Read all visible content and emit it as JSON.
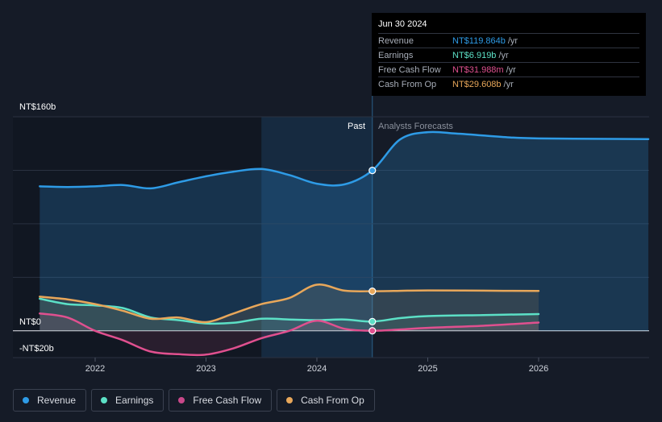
{
  "tooltip": {
    "date": "Jun 30 2024",
    "rows": [
      {
        "label": "Revenue",
        "value": "NT$119.864b",
        "unit": "/yr",
        "color": "#2e9be6"
      },
      {
        "label": "Earnings",
        "value": "NT$6.919b",
        "unit": "/yr",
        "color": "#5ce0c6"
      },
      {
        "label": "Free Cash Flow",
        "value": "NT$31.988m",
        "unit": "/yr",
        "color": "#e0508f"
      },
      {
        "label": "Cash From Op",
        "value": "NT$29.608b",
        "unit": "/yr",
        "color": "#e8a75a"
      }
    ]
  },
  "legend": [
    {
      "label": "Revenue",
      "color": "#2e9be6"
    },
    {
      "label": "Earnings",
      "color": "#5ce0c6"
    },
    {
      "label": "Free Cash Flow",
      "color": "#c9488a"
    },
    {
      "label": "Cash From Op",
      "color": "#e8a75a"
    }
  ],
  "chart_data": {
    "type": "line",
    "title": "",
    "xlabel": "",
    "ylabel": "",
    "y_top_label": "NT$160b",
    "y_zero_label": "NT$0",
    "y_bottom_label": "-NT$20b",
    "past_label": "Past",
    "forecast_label": "Analysts Forecasts",
    "ylim": [
      -20,
      160
    ],
    "xlim": [
      2021.45,
      2026.99
    ],
    "x_ticks": [
      2022,
      2023,
      2024,
      2025,
      2026
    ],
    "x_tick_labels": [
      "2022",
      "2023",
      "2024",
      "2025",
      "2026"
    ],
    "divider_x": 2024.5,
    "shade_start_x": 2023.5,
    "grid": true,
    "series": [
      {
        "name": "Revenue",
        "color": "#2e9be6",
        "points": [
          [
            2021.5,
            108
          ],
          [
            2021.75,
            107.5
          ],
          [
            2022.0,
            108
          ],
          [
            2022.25,
            109
          ],
          [
            2022.5,
            106.5
          ],
          [
            2022.75,
            111
          ],
          [
            2023.0,
            115.5
          ],
          [
            2023.25,
            119
          ],
          [
            2023.5,
            121
          ],
          [
            2023.75,
            116.5
          ],
          [
            2024.0,
            110
          ],
          [
            2024.25,
            109.5
          ],
          [
            2024.5,
            119.9
          ],
          [
            2024.75,
            143
          ],
          [
            2025.0,
            148.5
          ],
          [
            2025.25,
            147.5
          ],
          [
            2025.5,
            146
          ],
          [
            2025.75,
            144.5
          ],
          [
            2026.0,
            143.8
          ],
          [
            2026.5,
            143.5
          ],
          [
            2026.99,
            143.3
          ]
        ]
      },
      {
        "name": "Earnings",
        "color": "#5ce0c6",
        "points": [
          [
            2021.5,
            24
          ],
          [
            2021.75,
            20
          ],
          [
            2022.0,
            19
          ],
          [
            2022.25,
            17
          ],
          [
            2022.5,
            10
          ],
          [
            2022.75,
            8
          ],
          [
            2023.0,
            5.5
          ],
          [
            2023.25,
            6
          ],
          [
            2023.5,
            9
          ],
          [
            2023.75,
            8.5
          ],
          [
            2024.0,
            8
          ],
          [
            2024.25,
            8.5
          ],
          [
            2024.5,
            6.9
          ],
          [
            2024.75,
            9.5
          ],
          [
            2025.0,
            11
          ],
          [
            2025.5,
            11.8
          ],
          [
            2026.0,
            12.5
          ]
        ]
      },
      {
        "name": "Free Cash Flow",
        "color": "#e0508f",
        "points": [
          [
            2021.5,
            13
          ],
          [
            2021.75,
            10
          ],
          [
            2022.0,
            0
          ],
          [
            2022.25,
            -7
          ],
          [
            2022.5,
            -15.5
          ],
          [
            2022.75,
            -17.5
          ],
          [
            2023.0,
            -17.8
          ],
          [
            2023.25,
            -13
          ],
          [
            2023.5,
            -5.5
          ],
          [
            2023.75,
            0
          ],
          [
            2024.0,
            7.5
          ],
          [
            2024.25,
            1.5
          ],
          [
            2024.5,
            0.03
          ],
          [
            2024.75,
            1
          ],
          [
            2025.0,
            2.2
          ],
          [
            2025.5,
            3.8
          ],
          [
            2026.0,
            6.2
          ]
        ]
      },
      {
        "name": "Cash From Op",
        "color": "#e8a75a",
        "points": [
          [
            2021.5,
            25.5
          ],
          [
            2021.75,
            23.5
          ],
          [
            2022.0,
            20
          ],
          [
            2022.25,
            15
          ],
          [
            2022.5,
            9
          ],
          [
            2022.75,
            10
          ],
          [
            2023.0,
            6.5
          ],
          [
            2023.25,
            13
          ],
          [
            2023.5,
            20
          ],
          [
            2023.75,
            24.5
          ],
          [
            2024.0,
            34.5
          ],
          [
            2024.25,
            30
          ],
          [
            2024.5,
            29.6
          ],
          [
            2024.75,
            29.9
          ],
          [
            2025.0,
            30.2
          ],
          [
            2025.5,
            30
          ],
          [
            2026.0,
            29.8
          ]
        ]
      }
    ]
  }
}
